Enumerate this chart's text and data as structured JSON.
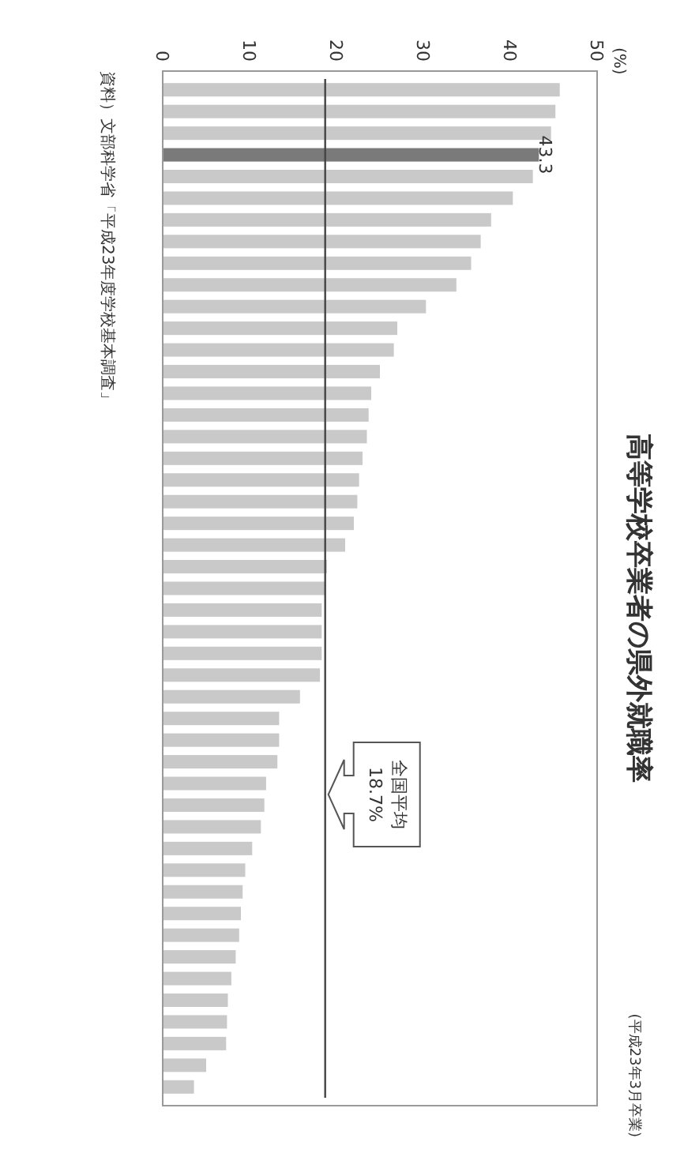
{
  "chart_data": {
    "type": "bar",
    "title": "高等学校卒業者の県外就職率",
    "subtitle": "(平成23年3月卒業)",
    "orientation": "horizontal",
    "categories": [
      null,
      null,
      null,
      null,
      null,
      null,
      null,
      null,
      null,
      null,
      null,
      null,
      null,
      null,
      null,
      null,
      null,
      null,
      null,
      null,
      null,
      null,
      null,
      null,
      null,
      null,
      null,
      null,
      null,
      null,
      null,
      null,
      null,
      null,
      null,
      null,
      null,
      null,
      null,
      null,
      null,
      null,
      null,
      null,
      null,
      null,
      null
    ],
    "values": [
      45.7,
      45.2,
      44.7,
      43.3,
      42.6,
      40.3,
      37.8,
      36.6,
      35.5,
      33.8,
      30.3,
      27.0,
      26.6,
      25.0,
      24.0,
      23.7,
      23.5,
      23.0,
      22.6,
      22.4,
      22.0,
      21.0,
      18.9,
      18.7,
      18.3,
      18.3,
      18.3,
      18.1,
      15.8,
      13.4,
      13.4,
      13.2,
      11.9,
      11.7,
      11.3,
      10.3,
      9.5,
      9.2,
      9.0,
      8.8,
      8.4,
      7.9,
      7.5,
      7.4,
      7.3,
      5.0,
      3.6
    ],
    "colors": [
      "#c9c9c9",
      "#c9c9c9",
      "#c9c9c9",
      "#7a7a7a",
      "#c9c9c9",
      "#c9c9c9",
      "#c9c9c9",
      "#c9c9c9",
      "#c9c9c9",
      "#c9c9c9",
      "#c9c9c9",
      "#c9c9c9",
      "#c9c9c9",
      "#c9c9c9",
      "#c9c9c9",
      "#c9c9c9",
      "#c9c9c9",
      "#c9c9c9",
      "#c9c9c9",
      "#c9c9c9",
      "#c9c9c9",
      "#c9c9c9",
      "#c9c9c9",
      "#c9c9c9",
      "#c9c9c9",
      "#c9c9c9",
      "#c9c9c9",
      "#c9c9c9",
      "#c9c9c9",
      "#c9c9c9",
      "#c9c9c9",
      "#c9c9c9",
      "#c9c9c9",
      "#c9c9c9",
      "#c9c9c9",
      "#c9c9c9",
      "#c9c9c9",
      "#c9c9c9",
      "#c9c9c9",
      "#c9c9c9",
      "#c9c9c9",
      "#c9c9c9",
      "#c9c9c9",
      "#c9c9c9",
      "#c9c9c9",
      "#c9c9c9",
      "#c9c9c9"
    ],
    "value_labels": [
      null,
      null,
      null,
      "43.3",
      null,
      null,
      null,
      null,
      null,
      null,
      null,
      null,
      null,
      null,
      null,
      null,
      null,
      null,
      null,
      null,
      null,
      null,
      null,
      null,
      null,
      null,
      null,
      null,
      null,
      null,
      null,
      null,
      null,
      null,
      null,
      null,
      null,
      null,
      null,
      null,
      null,
      null,
      null,
      null,
      null,
      null,
      null
    ],
    "xlim": [
      0,
      50
    ],
    "xticks": [
      0,
      10,
      20,
      30,
      40,
      50
    ],
    "ref_lines": [
      {
        "axis": "x",
        "value": 18.7,
        "label": "全国平均 18.7%",
        "color": "#444444"
      }
    ],
    "annotations": [
      "(%)",
      "資料）文部科学省「平成23年度学校基本調査」"
    ],
    "grid": false
  }
}
